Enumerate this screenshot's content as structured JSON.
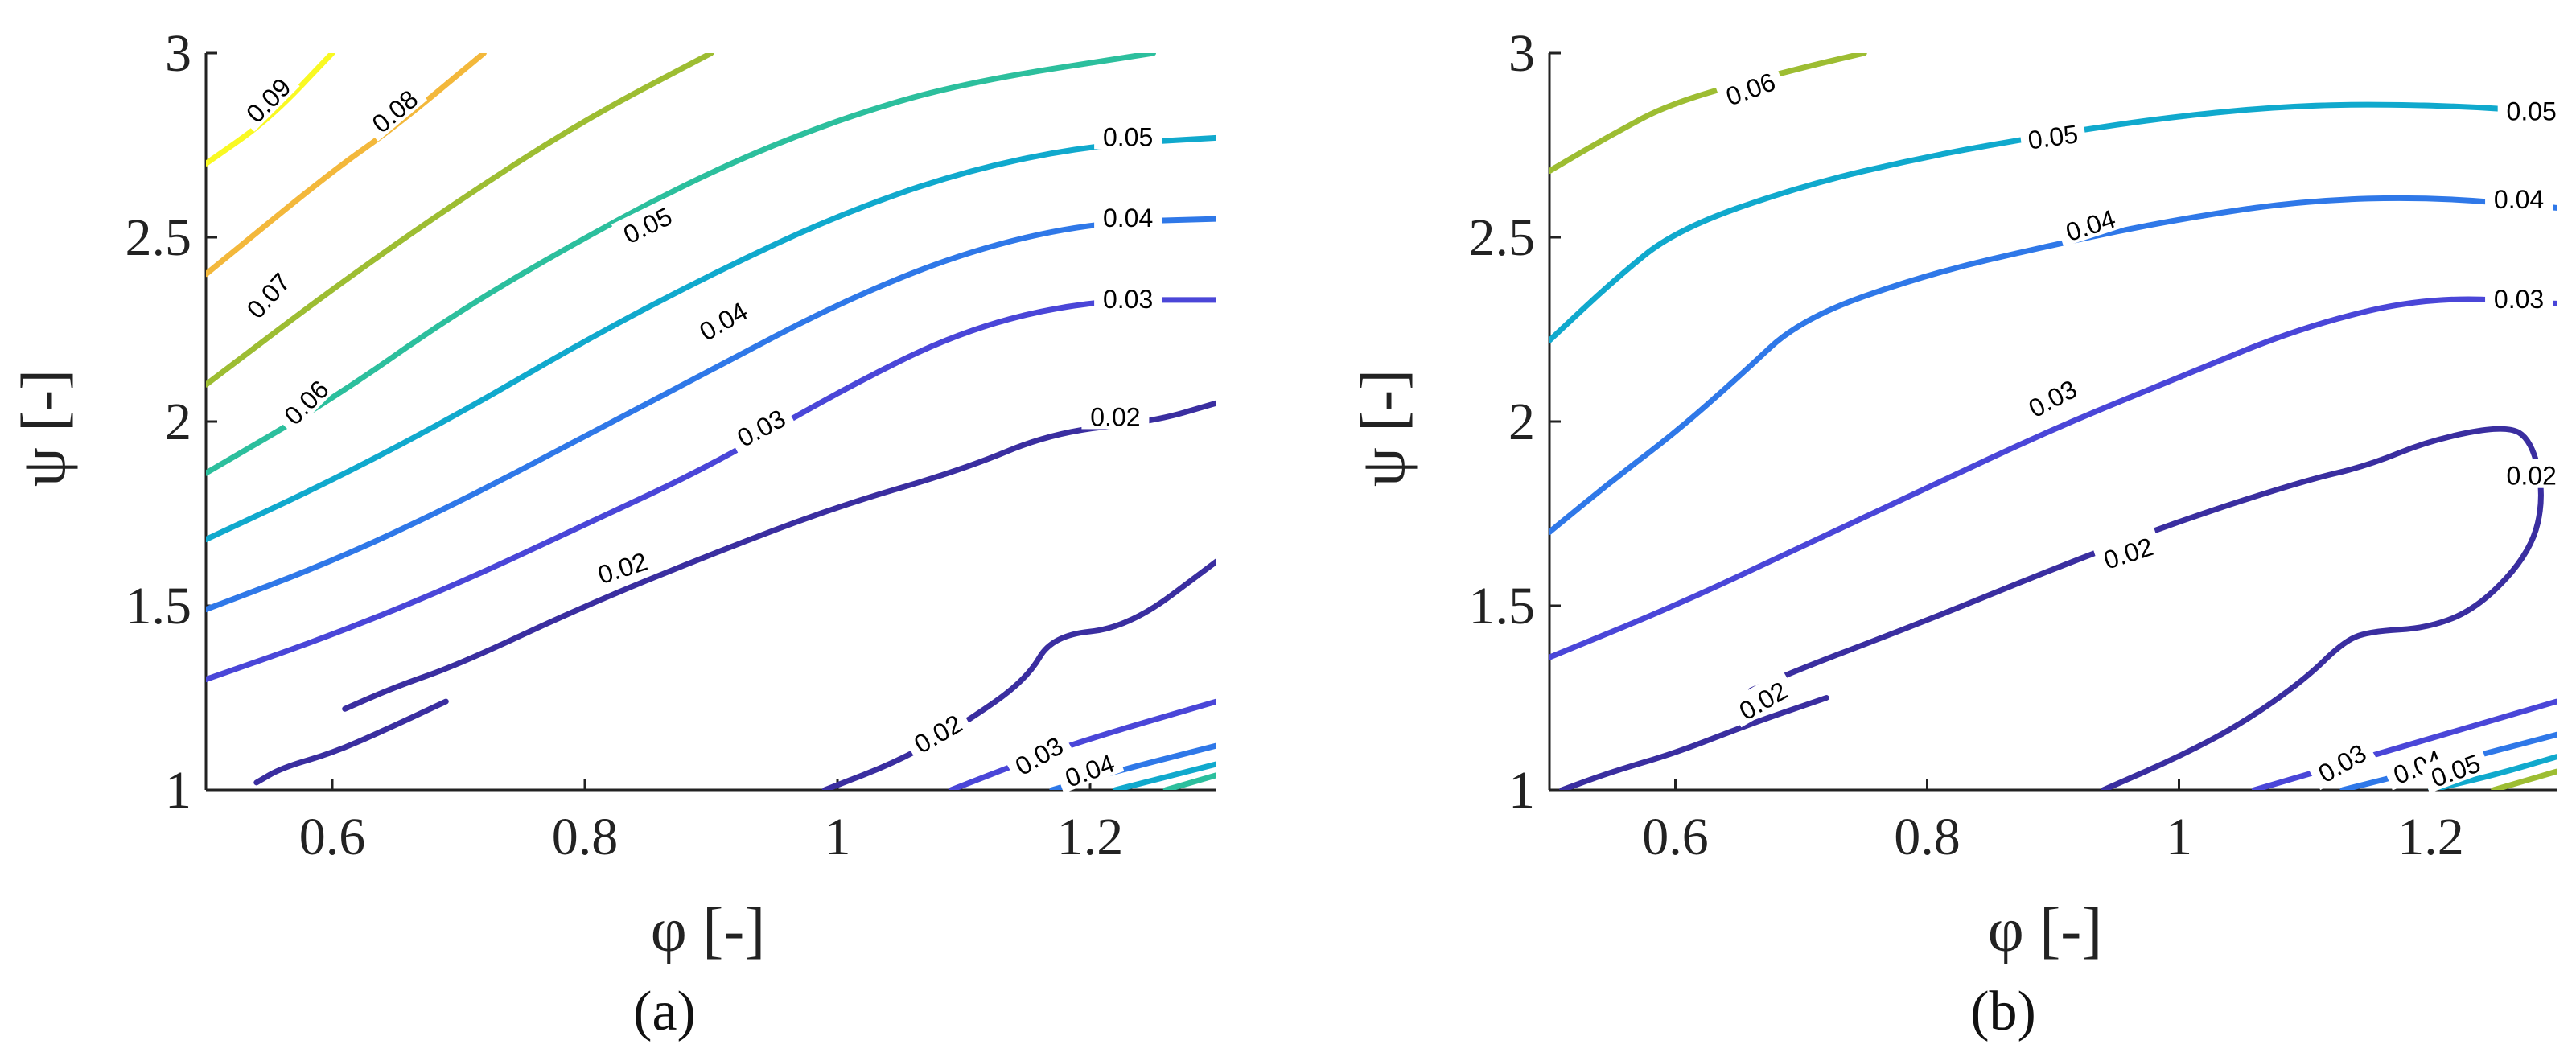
{
  "chart_data": [
    {
      "type": "contour",
      "panel_label": "(a)",
      "xlabel": "φ [-]",
      "ylabel": "ψ [-]",
      "xlim": [
        0.5,
        1.3
      ],
      "ylim": [
        1,
        3
      ],
      "xticks": [
        "0.6",
        "0.8",
        "1",
        "1.2"
      ],
      "yticks": [
        "1",
        "1.5",
        "2",
        "2.5",
        "3"
      ],
      "series": [
        {
          "level": "0.02",
          "color": "#3a2ea0",
          "points": [
            [
              0.54,
              1.02
            ],
            [
              0.56,
              1.06
            ],
            [
              0.6,
              1.1
            ],
            [
              0.64,
              1.16
            ],
            [
              0.69,
              1.24
            ]
          ],
          "label": null
        },
        {
          "level": "0.02",
          "color": "#3a2ea0",
          "points": [
            [
              0.61,
              1.22
            ],
            [
              0.65,
              1.28
            ],
            [
              0.7,
              1.34
            ],
            [
              0.8,
              1.5
            ],
            [
              0.9,
              1.64
            ],
            [
              1.0,
              1.77
            ],
            [
              1.1,
              1.87
            ],
            [
              1.17,
              1.97
            ],
            [
              1.25,
              2.0
            ],
            [
              1.3,
              2.05
            ]
          ],
          "label": {
            "text": "0.02",
            "x": 0.83,
            "y": 1.6,
            "angle": -18
          }
        },
        {
          "level": "0.02",
          "color": "#3a2ea0",
          "points": [
            [
              0.99,
              1.0
            ],
            [
              1.05,
              1.08
            ],
            [
              1.1,
              1.18
            ],
            [
              1.15,
              1.3
            ],
            [
              1.17,
              1.42
            ],
            [
              1.23,
              1.44
            ],
            [
              1.3,
              1.62
            ]
          ],
          "label": {
            "text": "0.02",
            "x": 1.08,
            "y": 1.15,
            "angle": -30
          }
        },
        {
          "level": "0.03",
          "color": "#4a46d8",
          "points": [
            [
              0.5,
              1.3
            ],
            [
              0.6,
              1.42
            ],
            [
              0.7,
              1.56
            ],
            [
              0.8,
              1.72
            ],
            [
              0.9,
              1.88
            ],
            [
              1.0,
              2.08
            ],
            [
              1.1,
              2.25
            ],
            [
              1.2,
              2.33
            ],
            [
              1.3,
              2.33
            ]
          ],
          "label": {
            "text": "0.03",
            "x": 0.94,
            "y": 1.98,
            "angle": -28
          }
        },
        {
          "level": "0.03",
          "color": "#4a46d8",
          "points": [
            [
              1.09,
              1.0
            ],
            [
              1.15,
              1.08
            ],
            [
              1.2,
              1.14
            ],
            [
              1.3,
              1.24
            ]
          ],
          "label": {
            "text": "0.03",
            "x": 1.16,
            "y": 1.09,
            "angle": -30
          }
        },
        {
          "level": "0.04",
          "color": "#2f78e8",
          "points": [
            [
              0.5,
              1.49
            ],
            [
              0.6,
              1.62
            ],
            [
              0.7,
              1.78
            ],
            [
              0.8,
              1.96
            ],
            [
              0.9,
              2.14
            ],
            [
              1.0,
              2.32
            ],
            [
              1.1,
              2.46
            ],
            [
              1.2,
              2.54
            ],
            [
              1.3,
              2.55
            ]
          ],
          "label": {
            "text": "0.04",
            "x": 0.91,
            "y": 2.27,
            "angle": -30
          }
        },
        {
          "level": "0.04",
          "color": "#2f78e8",
          "points": [
            [
              1.17,
              1.0
            ],
            [
              1.22,
              1.05
            ],
            [
              1.3,
              1.12
            ]
          ],
          "label": {
            "text": "0.04",
            "x": 1.2,
            "y": 1.05,
            "angle": -20
          }
        },
        {
          "level": "0.05",
          "color": "#10a9cd",
          "points": [
            [
              0.5,
              1.68
            ],
            [
              0.6,
              1.84
            ],
            [
              0.7,
              2.02
            ],
            [
              0.8,
              2.22
            ],
            [
              0.9,
              2.4
            ],
            [
              1.0,
              2.56
            ],
            [
              1.1,
              2.68
            ],
            [
              1.2,
              2.75
            ],
            [
              1.3,
              2.77
            ]
          ],
          "label": {
            "text": "0.05",
            "x": 0.85,
            "y": 2.53,
            "angle": -26
          }
        },
        {
          "level": "0.05",
          "color": "#10a9cd",
          "points": [
            [
              1.22,
              1.0
            ],
            [
              1.3,
              1.07
            ]
          ],
          "label": null
        },
        {
          "level": "0.06",
          "color": "#2cbf9d",
          "points": [
            [
              0.5,
              1.86
            ],
            [
              0.6,
              2.06
            ],
            [
              0.7,
              2.3
            ],
            [
              0.8,
              2.5
            ],
            [
              0.9,
              2.68
            ],
            [
              1.0,
              2.82
            ],
            [
              1.1,
              2.92
            ],
            [
              1.25,
              3.0
            ]
          ],
          "label": {
            "text": "0.06",
            "x": 0.58,
            "y": 2.05,
            "angle": -45
          }
        },
        {
          "level": "0.06",
          "color": "#2cbf9d",
          "points": [
            [
              1.26,
              1.0
            ],
            [
              1.3,
              1.04
            ]
          ],
          "label": null
        },
        {
          "level": "0.07",
          "color": "#9dbd32",
          "points": [
            [
              0.5,
              2.1
            ],
            [
              0.6,
              2.36
            ],
            [
              0.7,
              2.6
            ],
            [
              0.8,
              2.82
            ],
            [
              0.9,
              3.0
            ]
          ],
          "label": {
            "text": "0.07",
            "x": 0.55,
            "y": 2.34,
            "angle": -48
          }
        },
        {
          "level": "0.08",
          "color": "#f3b83b",
          "points": [
            [
              0.5,
              2.4
            ],
            [
              0.6,
              2.68
            ],
            [
              0.65,
              2.8
            ],
            [
              0.72,
              3.0
            ]
          ],
          "label": {
            "text": "0.08",
            "x": 0.65,
            "y": 2.84,
            "angle": -40
          }
        },
        {
          "level": "0.09",
          "color": "#f9f922",
          "points": [
            [
              0.5,
              2.7
            ],
            [
              0.55,
              2.82
            ],
            [
              0.6,
              3.0
            ]
          ],
          "label": {
            "text": "0.09",
            "x": 0.55,
            "y": 2.87,
            "angle": -45
          }
        }
      ],
      "contour_labels_right": [
        {
          "text": "0.05",
          "x": 1.23,
          "y": 2.77
        },
        {
          "text": "0.04",
          "x": 1.23,
          "y": 2.55
        },
        {
          "text": "0.03",
          "x": 1.23,
          "y": 2.33
        },
        {
          "text": "0.02",
          "x": 1.22,
          "y": 2.01
        }
      ],
      "colors": {
        "0.02": "#3a2ea0",
        "0.03": "#4a46d8",
        "0.04": "#2f78e8",
        "0.05": "#10a9cd",
        "0.06": "#2cbf9d",
        "0.07": "#9dbd32",
        "0.08": "#f3b83b",
        "0.09": "#f9f922"
      }
    },
    {
      "type": "contour",
      "panel_label": "(b)",
      "xlabel": "φ [-]",
      "ylabel": "ψ [-]",
      "xlim": [
        0.5,
        1.3
      ],
      "ylim": [
        1,
        3
      ],
      "xticks": [
        "0.6",
        "0.8",
        "1",
        "1.2"
      ],
      "yticks": [
        "1",
        "1.5",
        "2",
        "2.5",
        "3"
      ],
      "series": [
        {
          "level": "0.02",
          "color": "#3a2ea0",
          "points": [
            [
              0.51,
              1.0
            ],
            [
              0.55,
              1.05
            ],
            [
              0.6,
              1.1
            ],
            [
              0.66,
              1.18
            ],
            [
              0.72,
              1.25
            ]
          ],
          "label": {
            "text": "0.02",
            "x": 0.67,
            "y": 1.24,
            "angle": -30
          }
        },
        {
          "level": "0.02",
          "color": "#3a2ea0",
          "points": [
            [
              0.66,
              1.27
            ],
            [
              0.7,
              1.33
            ],
            [
              0.8,
              1.46
            ],
            [
              0.9,
              1.6
            ],
            [
              1.0,
              1.73
            ],
            [
              1.1,
              1.84
            ],
            [
              1.15,
              1.88
            ],
            [
              1.2,
              1.95
            ],
            [
              1.26,
              1.99
            ],
            [
              1.28,
              1.95
            ],
            [
              1.29,
              1.8
            ],
            [
              1.28,
              1.65
            ],
            [
              1.24,
              1.5
            ],
            [
              1.2,
              1.44
            ],
            [
              1.15,
              1.43
            ],
            [
              1.13,
              1.4
            ],
            [
              1.1,
              1.3
            ],
            [
              1.05,
              1.18
            ],
            [
              1.0,
              1.09
            ],
            [
              0.94,
              1.0
            ]
          ],
          "label": {
            "text": "0.02",
            "x": 0.96,
            "y": 1.64,
            "angle": -18
          }
        },
        {
          "level": "0.03",
          "color": "#4a46d8",
          "points": [
            [
              0.5,
              1.36
            ],
            [
              0.6,
              1.5
            ],
            [
              0.7,
              1.66
            ],
            [
              0.8,
              1.82
            ],
            [
              0.9,
              1.98
            ],
            [
              1.0,
              2.12
            ],
            [
              1.1,
              2.26
            ],
            [
              1.2,
              2.34
            ],
            [
              1.3,
              2.32
            ]
          ],
          "label": {
            "text": "0.03",
            "x": 0.9,
            "y": 2.06,
            "angle": -28
          }
        },
        {
          "level": "0.03",
          "color": "#4a46d8",
          "points": [
            [
              1.06,
              1.0
            ],
            [
              1.12,
              1.06
            ],
            [
              1.18,
              1.12
            ],
            [
              1.3,
              1.24
            ]
          ],
          "label": {
            "text": "0.03",
            "x": 1.13,
            "y": 1.07,
            "angle": -30
          }
        },
        {
          "level": "0.04",
          "color": "#2f78e8",
          "points": [
            [
              0.5,
              1.7
            ],
            [
              0.55,
              1.84
            ],
            [
              0.6,
              1.97
            ],
            [
              0.65,
              2.12
            ],
            [
              0.7,
              2.28
            ],
            [
              0.8,
              2.4
            ],
            [
              0.9,
              2.48
            ],
            [
              1.0,
              2.55
            ],
            [
              1.1,
              2.6
            ],
            [
              1.2,
              2.61
            ],
            [
              1.3,
              2.58
            ]
          ],
          "label": {
            "text": "0.04",
            "x": 0.93,
            "y": 2.53,
            "angle": -18
          }
        },
        {
          "level": "0.04",
          "color": "#2f78e8",
          "points": [
            [
              1.13,
              1.0
            ],
            [
              1.2,
              1.06
            ],
            [
              1.3,
              1.15
            ]
          ],
          "label": {
            "text": "0.04",
            "x": 1.19,
            "y": 1.06,
            "angle": -22
          }
        },
        {
          "level": "0.05",
          "color": "#10a9cd",
          "points": [
            [
              0.5,
              2.22
            ],
            [
              0.55,
              2.38
            ],
            [
              0.6,
              2.52
            ],
            [
              0.7,
              2.64
            ],
            [
              0.8,
              2.72
            ],
            [
              0.9,
              2.78
            ],
            [
              1.0,
              2.83
            ],
            [
              1.1,
              2.86
            ],
            [
              1.2,
              2.86
            ],
            [
              1.3,
              2.84
            ]
          ],
          "label": {
            "text": "0.05",
            "x": 0.9,
            "y": 2.77,
            "angle": -8
          }
        },
        {
          "level": "0.05",
          "color": "#10a9cd",
          "points": [
            [
              1.2,
              1.0
            ],
            [
              1.25,
              1.04
            ],
            [
              1.3,
              1.09
            ]
          ],
          "label": {
            "text": "0.05",
            "x": 1.22,
            "y": 1.05,
            "angle": -20
          }
        },
        {
          "level": "0.06",
          "color": "#9dbd32",
          "points": [
            [
              0.5,
              2.68
            ],
            [
              0.55,
              2.78
            ],
            [
              0.6,
              2.87
            ],
            [
              0.7,
              2.96
            ],
            [
              0.75,
              3.0
            ]
          ],
          "label": {
            "text": "0.06",
            "x": 0.66,
            "y": 2.9,
            "angle": -20
          }
        },
        {
          "level": "0.06",
          "color": "#9dbd32",
          "points": [
            [
              1.25,
              1.0
            ],
            [
              1.3,
              1.05
            ]
          ],
          "label": null
        }
      ],
      "contour_labels_right": [
        {
          "text": "0.05",
          "x": 1.28,
          "y": 2.84
        },
        {
          "text": "0.04",
          "x": 1.27,
          "y": 2.6
        },
        {
          "text": "0.03",
          "x": 1.27,
          "y": 2.33
        },
        {
          "text": "0.02",
          "x": 1.28,
          "y": 1.85
        }
      ],
      "colors": {
        "0.02": "#3a2ea0",
        "0.03": "#4a46d8",
        "0.04": "#2f78e8",
        "0.05": "#10a9cd",
        "0.06": "#9dbd32"
      }
    }
  ]
}
